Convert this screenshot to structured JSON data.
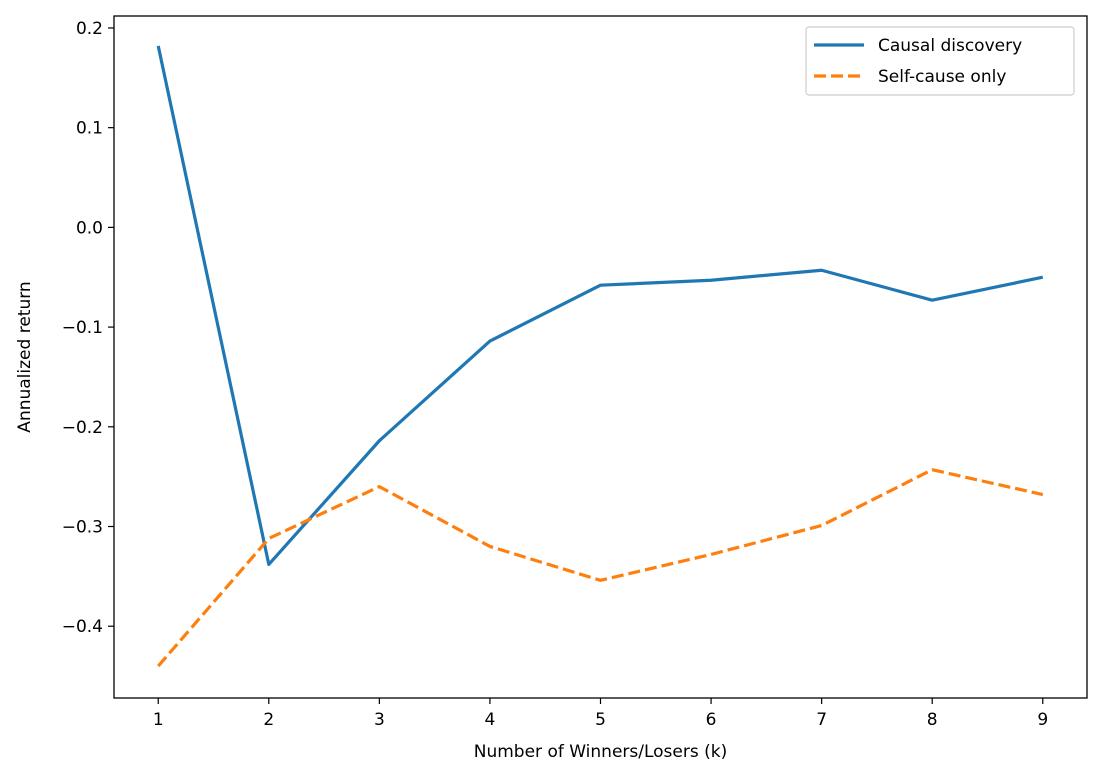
{
  "chart_data": {
    "type": "line",
    "title": "",
    "xlabel": "Number of Winners/Losers (k)",
    "ylabel": "Annualized return",
    "x": [
      1,
      2,
      3,
      4,
      5,
      6,
      7,
      8,
      9
    ],
    "xlim": [
      0.6,
      9.4
    ],
    "ylim": [
      -0.472,
      0.212
    ],
    "xticks": [
      1,
      2,
      3,
      4,
      5,
      6,
      7,
      8,
      9
    ],
    "xtick_labels": [
      "1",
      "2",
      "3",
      "4",
      "5",
      "6",
      "7",
      "8",
      "9"
    ],
    "yticks": [
      0.2,
      0.1,
      0.0,
      -0.1,
      -0.2,
      -0.3,
      -0.4
    ],
    "ytick_labels": [
      "0.2",
      "0.1",
      "0.0",
      "−0.1",
      "−0.2",
      "−0.3",
      "−0.4"
    ],
    "grid": false,
    "legend_position": "upper right",
    "series": [
      {
        "name": "Causal discovery",
        "color": "#1f77b4",
        "style": "solid",
        "values": [
          0.182,
          -0.338,
          -0.214,
          -0.114,
          -0.058,
          -0.053,
          -0.043,
          -0.073,
          -0.05
        ]
      },
      {
        "name": "Self-cause only",
        "color": "#ff7f0e",
        "style": "dashed",
        "values": [
          -0.44,
          -0.312,
          -0.26,
          -0.32,
          -0.354,
          -0.328,
          -0.299,
          -0.243,
          -0.268
        ]
      }
    ]
  }
}
